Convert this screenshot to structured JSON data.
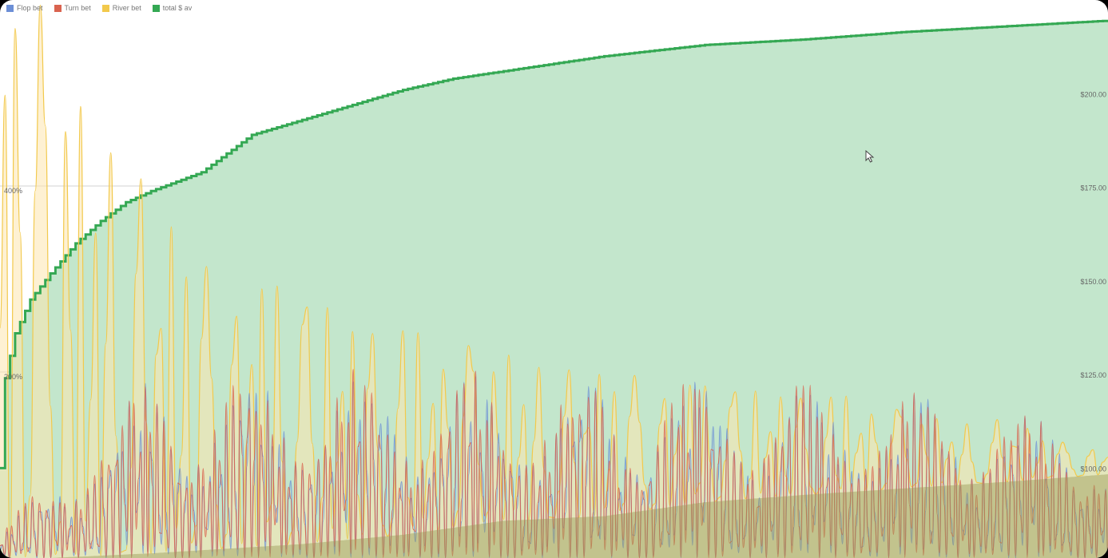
{
  "colors": {
    "flop": "#6c8fd6",
    "turn": "#d9634f",
    "river": "#f2c94c",
    "river_fill": "#fde6ae",
    "total": "#34a853",
    "total_fill": "#c3e6cc",
    "grid": "#d0d0d0",
    "frame_bg": "#000000"
  },
  "cursor_icon": "mouse-pointer-icon",
  "chart_data": {
    "type": "area",
    "title": "",
    "xlabel": "",
    "grid": true,
    "legend": "top-left",
    "legend_entries": [
      "Flop bet",
      "Turn bet",
      "River bet",
      "total $ av"
    ],
    "left_axis": {
      "ticks": [
        200,
        400
      ],
      "tick_labels": [
        "200%",
        "400%"
      ],
      "range": [
        0,
        600
      ]
    },
    "right_axis": {
      "ticks": [
        100,
        125,
        150,
        175,
        200
      ],
      "tick_labels": [
        "$100.00",
        "$125.00",
        "$150.00",
        "$175.00",
        "$200.00"
      ],
      "range": [
        76,
        225
      ]
    },
    "x": {
      "range": [
        0,
        220
      ],
      "points": 221
    },
    "series": [
      {
        "name": "total $ av",
        "axis": "right",
        "type": "area",
        "anchors": [
          [
            0,
            100
          ],
          [
            1,
            124
          ],
          [
            3,
            136
          ],
          [
            6,
            145
          ],
          [
            10,
            152
          ],
          [
            15,
            160
          ],
          [
            20,
            166
          ],
          [
            25,
            171
          ],
          [
            30,
            174
          ],
          [
            40,
            179
          ],
          [
            50,
            189
          ],
          [
            60,
            193
          ],
          [
            70,
            197
          ],
          [
            80,
            201
          ],
          [
            90,
            204
          ],
          [
            100,
            206
          ],
          [
            120,
            210
          ],
          [
            140,
            213
          ],
          [
            160,
            214.5
          ],
          [
            180,
            216.5
          ],
          [
            200,
            218
          ],
          [
            220,
            219.5
          ]
        ]
      },
      {
        "name": "River bet",
        "axis": "left",
        "type": "area",
        "envelope": [
          [
            0,
            750
          ],
          [
            10,
            560
          ],
          [
            20,
            470
          ],
          [
            30,
            400
          ],
          [
            40,
            320
          ],
          [
            50,
            300
          ],
          [
            60,
            285
          ],
          [
            70,
            255
          ],
          [
            80,
            250
          ],
          [
            90,
            235
          ],
          [
            100,
            225
          ],
          [
            110,
            205
          ],
          [
            120,
            200
          ],
          [
            130,
            195
          ],
          [
            140,
            185
          ],
          [
            150,
            180
          ],
          [
            160,
            175
          ],
          [
            170,
            175
          ],
          [
            180,
            160
          ],
          [
            190,
            145
          ],
          [
            200,
            150
          ],
          [
            210,
            125
          ],
          [
            220,
            120
          ]
        ],
        "base": [
          [
            0,
            0
          ],
          [
            10,
            0
          ],
          [
            30,
            5
          ],
          [
            60,
            15
          ],
          [
            80,
            25
          ],
          [
            100,
            40
          ],
          [
            120,
            45
          ],
          [
            140,
            60
          ],
          [
            160,
            68
          ],
          [
            180,
            75
          ],
          [
            200,
            82
          ],
          [
            220,
            90
          ]
        ]
      },
      {
        "name": "Turn bet",
        "axis": "left",
        "type": "line",
        "envelope": [
          [
            0,
            30
          ],
          [
            10,
            90
          ],
          [
            20,
            160
          ],
          [
            30,
            200
          ],
          [
            45,
            200
          ],
          [
            60,
            210
          ],
          [
            80,
            200
          ],
          [
            100,
            205
          ],
          [
            120,
            195
          ],
          [
            140,
            200
          ],
          [
            160,
            190
          ],
          [
            180,
            185
          ],
          [
            200,
            165
          ],
          [
            220,
            145
          ]
        ]
      },
      {
        "name": "Flop bet",
        "axis": "left",
        "type": "line",
        "envelope": [
          [
            0,
            25
          ],
          [
            10,
            85
          ],
          [
            20,
            155
          ],
          [
            30,
            195
          ],
          [
            45,
            195
          ],
          [
            60,
            205
          ],
          [
            80,
            198
          ],
          [
            100,
            200
          ],
          [
            120,
            190
          ],
          [
            140,
            195
          ],
          [
            160,
            185
          ],
          [
            180,
            180
          ],
          [
            200,
            160
          ],
          [
            220,
            140
          ]
        ]
      }
    ]
  }
}
